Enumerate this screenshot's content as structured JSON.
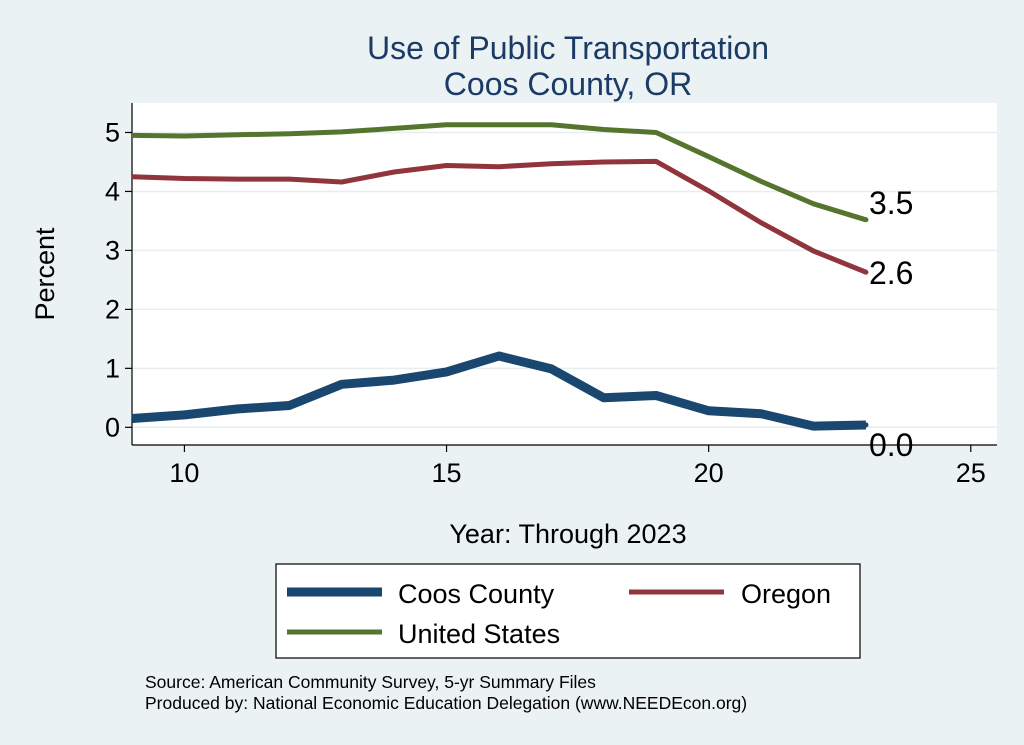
{
  "chart_data": {
    "type": "line",
    "title": "Use of Public Transportation",
    "subtitle": "Coos County, OR",
    "xlabel": "Year: Through 2023",
    "ylabel": "Percent",
    "xlim": [
      9,
      25.5
    ],
    "ylim": [
      -0.3,
      5.5
    ],
    "xticks": [
      10,
      15,
      20,
      25
    ],
    "yticks": [
      0,
      1,
      2,
      3,
      4,
      5
    ],
    "grid": true,
    "legend_position": "bottom",
    "x": [
      9,
      10,
      11,
      12,
      13,
      14,
      15,
      16,
      17,
      18,
      19,
      20,
      21,
      22,
      23
    ],
    "series": [
      {
        "name": "Coos County",
        "color": "#1a476f",
        "values": [
          0.15,
          0.21,
          0.31,
          0.37,
          0.73,
          0.8,
          0.94,
          1.21,
          0.99,
          0.5,
          0.54,
          0.28,
          0.23,
          0.02,
          0.04
        ],
        "end_label": "0.0"
      },
      {
        "name": "Oregon",
        "color": "#90353b",
        "values": [
          4.25,
          4.22,
          4.21,
          4.21,
          4.16,
          4.33,
          4.44,
          4.42,
          4.47,
          4.5,
          4.51,
          4.01,
          3.47,
          2.99,
          2.63
        ],
        "end_label": "2.6"
      },
      {
        "name": "United States",
        "color": "#55752f",
        "values": [
          4.95,
          4.94,
          4.96,
          4.98,
          5.01,
          5.07,
          5.13,
          5.13,
          5.13,
          5.05,
          5.0,
          4.59,
          4.17,
          3.79,
          3.52
        ],
        "end_label": "3.5"
      }
    ],
    "notes": [
      "Source: American Community Survey, 5-yr Summary Files",
      "Produced by: National Economic Education Delegation (www.NEEDEcon.org)"
    ]
  }
}
